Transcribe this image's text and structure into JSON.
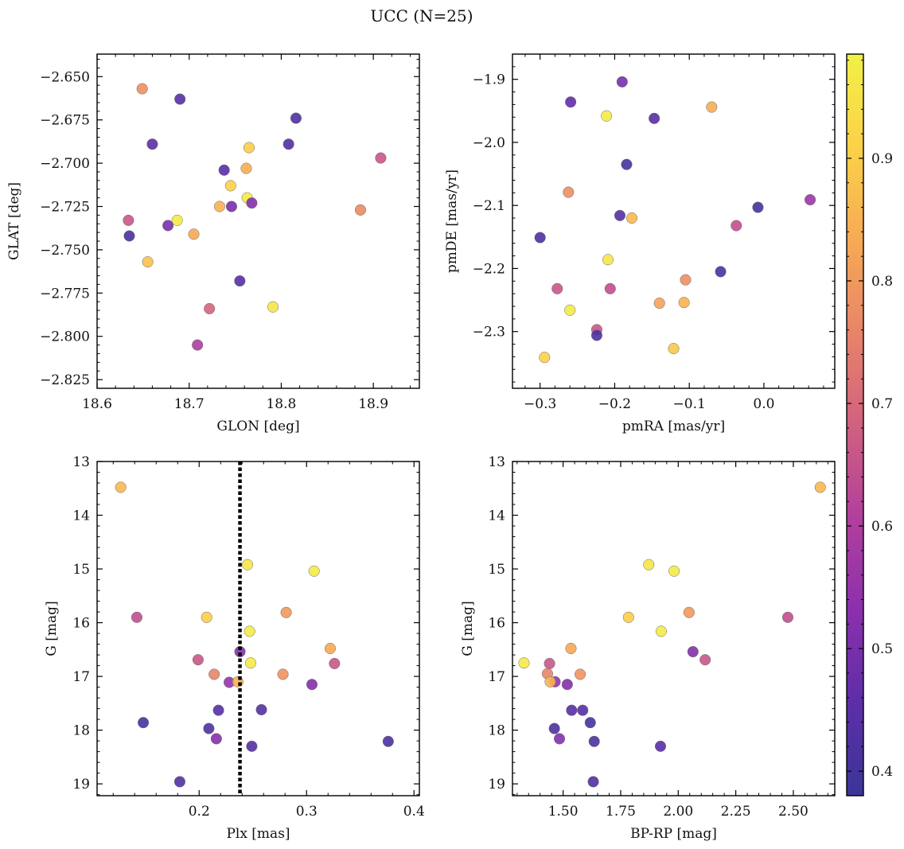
{
  "chart_data": [
    {
      "type": "scatter",
      "title": "UCC (N=25)",
      "xlabel": "GLON [deg]",
      "ylabel": "GLAT [deg]",
      "xlim": [
        18.6,
        18.95
      ],
      "ylim": [
        -2.83,
        -2.637
      ],
      "x_ticks": [
        {
          "value": 18.6,
          "label": "18.6"
        },
        {
          "value": 18.7,
          "label": "18.7"
        },
        {
          "value": 18.8,
          "label": "18.8"
        },
        {
          "value": 18.9,
          "label": "18.9"
        }
      ],
      "y_ticks": [
        {
          "value": -2.65,
          "label": "−2.650"
        },
        {
          "value": -2.675,
          "label": "−2.675"
        },
        {
          "value": -2.7,
          "label": "−2.700"
        },
        {
          "value": -2.725,
          "label": "−2.725"
        },
        {
          "value": -2.75,
          "label": "−2.750"
        },
        {
          "value": -2.775,
          "label": "−2.775"
        },
        {
          "value": -2.8,
          "label": "−2.800"
        },
        {
          "value": -2.825,
          "label": "−2.825"
        }
      ],
      "points": [
        {
          "x": 18.649,
          "y": -2.657,
          "c": 0.78
        },
        {
          "x": 18.69,
          "y": -2.663,
          "c": 0.44
        },
        {
          "x": 18.66,
          "y": -2.689,
          "c": 0.45
        },
        {
          "x": 18.816,
          "y": -2.674,
          "c": 0.42
        },
        {
          "x": 18.808,
          "y": -2.689,
          "c": 0.43
        },
        {
          "x": 18.765,
          "y": -2.691,
          "c": 0.9
        },
        {
          "x": 18.908,
          "y": -2.697,
          "c": 0.66
        },
        {
          "x": 18.738,
          "y": -2.704,
          "c": 0.44
        },
        {
          "x": 18.762,
          "y": -2.703,
          "c": 0.84
        },
        {
          "x": 18.745,
          "y": -2.713,
          "c": 0.91
        },
        {
          "x": 18.763,
          "y": -2.72,
          "c": 0.97
        },
        {
          "x": 18.768,
          "y": -2.723,
          "c": 0.52
        },
        {
          "x": 18.733,
          "y": -2.725,
          "c": 0.85
        },
        {
          "x": 18.746,
          "y": -2.725,
          "c": 0.5
        },
        {
          "x": 18.886,
          "y": -2.727,
          "c": 0.77
        },
        {
          "x": 18.634,
          "y": -2.733,
          "c": 0.66
        },
        {
          "x": 18.687,
          "y": -2.733,
          "c": 0.97
        },
        {
          "x": 18.677,
          "y": -2.736,
          "c": 0.5
        },
        {
          "x": 18.635,
          "y": -2.742,
          "c": 0.41
        },
        {
          "x": 18.705,
          "y": -2.741,
          "c": 0.83
        },
        {
          "x": 18.655,
          "y": -2.757,
          "c": 0.88
        },
        {
          "x": 18.755,
          "y": -2.768,
          "c": 0.44
        },
        {
          "x": 18.722,
          "y": -2.784,
          "c": 0.69
        },
        {
          "x": 18.791,
          "y": -2.783,
          "c": 0.96
        },
        {
          "x": 18.709,
          "y": -2.805,
          "c": 0.6
        }
      ]
    },
    {
      "type": "scatter",
      "xlabel": "pmRA [mas/yr]",
      "ylabel": "pmDE [mas/yr]",
      "xlim": [
        -0.337,
        0.095
      ],
      "ylim": [
        -2.39,
        -1.86
      ],
      "x_ticks": [
        {
          "value": -0.3,
          "label": "−0.3"
        },
        {
          "value": -0.2,
          "label": "−0.2"
        },
        {
          "value": -0.1,
          "label": "−0.1"
        },
        {
          "value": 0.0,
          "label": "0.0"
        }
      ],
      "y_ticks": [
        {
          "value": -1.9,
          "label": "−1.9"
        },
        {
          "value": -2.0,
          "label": "−2.0"
        },
        {
          "value": -2.1,
          "label": "−2.1"
        },
        {
          "value": -2.2,
          "label": "−2.2"
        },
        {
          "value": -2.3,
          "label": "−2.3"
        }
      ],
      "points": [
        {
          "x": -0.19,
          "y": -1.904,
          "c": 0.5
        },
        {
          "x": -0.259,
          "y": -1.936,
          "c": 0.46
        },
        {
          "x": -0.07,
          "y": -1.944,
          "c": 0.84
        },
        {
          "x": -0.211,
          "y": -1.958,
          "c": 0.97
        },
        {
          "x": -0.147,
          "y": -1.962,
          "c": 0.44
        },
        {
          "x": -0.184,
          "y": -2.035,
          "c": 0.41
        },
        {
          "x": -0.262,
          "y": -2.079,
          "c": 0.78
        },
        {
          "x": 0.062,
          "y": -2.091,
          "c": 0.56
        },
        {
          "x": -0.008,
          "y": -2.103,
          "c": 0.4
        },
        {
          "x": -0.193,
          "y": -2.116,
          "c": 0.44
        },
        {
          "x": -0.177,
          "y": -2.12,
          "c": 0.86
        },
        {
          "x": -0.037,
          "y": -2.132,
          "c": 0.64
        },
        {
          "x": -0.3,
          "y": -2.151,
          "c": 0.42
        },
        {
          "x": -0.209,
          "y": -2.186,
          "c": 0.96
        },
        {
          "x": -0.058,
          "y": -2.205,
          "c": 0.42
        },
        {
          "x": -0.105,
          "y": -2.218,
          "c": 0.78
        },
        {
          "x": -0.277,
          "y": -2.232,
          "c": 0.66
        },
        {
          "x": -0.206,
          "y": -2.232,
          "c": 0.64
        },
        {
          "x": -0.14,
          "y": -2.255,
          "c": 0.82
        },
        {
          "x": -0.107,
          "y": -2.254,
          "c": 0.85
        },
        {
          "x": -0.26,
          "y": -2.266,
          "c": 0.97
        },
        {
          "x": -0.224,
          "y": -2.297,
          "c": 0.66
        },
        {
          "x": -0.224,
          "y": -2.306,
          "c": 0.42
        },
        {
          "x": -0.121,
          "y": -2.327,
          "c": 0.89
        },
        {
          "x": -0.294,
          "y": -2.341,
          "c": 0.91
        }
      ]
    },
    {
      "type": "scatter",
      "xlabel": "Plx [mas]",
      "ylabel": "G [mag]",
      "xlim": [
        0.105,
        0.405
      ],
      "ylim": [
        19.22,
        13.0
      ],
      "y_inverted": true,
      "vline": 0.238,
      "x_ticks": [
        {
          "value": 0.2,
          "label": "0.2"
        },
        {
          "value": 0.3,
          "label": "0.3"
        },
        {
          "value": 0.4,
          "label": "0.4"
        }
      ],
      "y_ticks": [
        {
          "value": 13,
          "label": "13"
        },
        {
          "value": 14,
          "label": "14"
        },
        {
          "value": 15,
          "label": "15"
        },
        {
          "value": 16,
          "label": "16"
        },
        {
          "value": 17,
          "label": "17"
        },
        {
          "value": 18,
          "label": "18"
        },
        {
          "value": 19,
          "label": "19"
        }
      ],
      "points": [
        {
          "x": 0.127,
          "y": 13.48,
          "c": 0.86
        },
        {
          "x": 0.245,
          "y": 14.92,
          "c": 0.96
        },
        {
          "x": 0.307,
          "y": 15.04,
          "c": 0.97
        },
        {
          "x": 0.142,
          "y": 15.9,
          "c": 0.64
        },
        {
          "x": 0.207,
          "y": 15.9,
          "c": 0.9
        },
        {
          "x": 0.281,
          "y": 15.81,
          "c": 0.8
        },
        {
          "x": 0.247,
          "y": 16.16,
          "c": 0.97
        },
        {
          "x": 0.322,
          "y": 16.48,
          "c": 0.83
        },
        {
          "x": 0.238,
          "y": 16.54,
          "c": 0.52
        },
        {
          "x": 0.199,
          "y": 16.69,
          "c": 0.66
        },
        {
          "x": 0.248,
          "y": 16.75,
          "c": 0.97
        },
        {
          "x": 0.326,
          "y": 16.76,
          "c": 0.66
        },
        {
          "x": 0.214,
          "y": 16.96,
          "c": 0.76
        },
        {
          "x": 0.278,
          "y": 16.96,
          "c": 0.79
        },
        {
          "x": 0.228,
          "y": 17.11,
          "c": 0.55
        },
        {
          "x": 0.236,
          "y": 17.1,
          "c": 0.85
        },
        {
          "x": 0.305,
          "y": 17.15,
          "c": 0.52
        },
        {
          "x": 0.218,
          "y": 17.63,
          "c": 0.44
        },
        {
          "x": 0.258,
          "y": 17.62,
          "c": 0.44
        },
        {
          "x": 0.148,
          "y": 17.86,
          "c": 0.41
        },
        {
          "x": 0.209,
          "y": 17.97,
          "c": 0.42
        },
        {
          "x": 0.216,
          "y": 18.16,
          "c": 0.52
        },
        {
          "x": 0.249,
          "y": 18.3,
          "c": 0.44
        },
        {
          "x": 0.376,
          "y": 18.21,
          "c": 0.42
        },
        {
          "x": 0.182,
          "y": 18.96,
          "c": 0.43
        }
      ]
    },
    {
      "type": "scatter",
      "xlabel": "BP-RP [mag]",
      "ylabel": "G [mag]",
      "xlim": [
        1.28,
        2.68
      ],
      "ylim": [
        19.22,
        13.0
      ],
      "y_inverted": true,
      "x_ticks": [
        {
          "value": 1.5,
          "label": "1.50"
        },
        {
          "value": 1.75,
          "label": "1.75"
        },
        {
          "value": 2.0,
          "label": "2.00"
        },
        {
          "value": 2.25,
          "label": "2.25"
        },
        {
          "value": 2.5,
          "label": "2.50"
        }
      ],
      "y_ticks": [
        {
          "value": 13,
          "label": "13"
        },
        {
          "value": 14,
          "label": "14"
        },
        {
          "value": 15,
          "label": "15"
        },
        {
          "value": 16,
          "label": "16"
        },
        {
          "value": 17,
          "label": "17"
        },
        {
          "value": 18,
          "label": "18"
        },
        {
          "value": 19,
          "label": "19"
        }
      ],
      "points": [
        {
          "x": 2.617,
          "y": 13.48,
          "c": 0.86
        },
        {
          "x": 1.872,
          "y": 14.92,
          "c": 0.96
        },
        {
          "x": 1.982,
          "y": 15.04,
          "c": 0.97
        },
        {
          "x": 2.476,
          "y": 15.9,
          "c": 0.64
        },
        {
          "x": 1.784,
          "y": 15.9,
          "c": 0.9
        },
        {
          "x": 2.047,
          "y": 15.81,
          "c": 0.8
        },
        {
          "x": 1.926,
          "y": 16.16,
          "c": 0.97
        },
        {
          "x": 1.534,
          "y": 16.48,
          "c": 0.83
        },
        {
          "x": 2.064,
          "y": 16.54,
          "c": 0.52
        },
        {
          "x": 2.117,
          "y": 16.69,
          "c": 0.66
        },
        {
          "x": 1.33,
          "y": 16.75,
          "c": 0.97
        },
        {
          "x": 1.441,
          "y": 16.76,
          "c": 0.66
        },
        {
          "x": 1.432,
          "y": 16.95,
          "c": 0.76
        },
        {
          "x": 1.574,
          "y": 16.96,
          "c": 0.79
        },
        {
          "x": 1.465,
          "y": 17.1,
          "c": 0.55
        },
        {
          "x": 1.444,
          "y": 17.1,
          "c": 0.85
        },
        {
          "x": 1.518,
          "y": 17.15,
          "c": 0.52
        },
        {
          "x": 1.537,
          "y": 17.63,
          "c": 0.44
        },
        {
          "x": 1.585,
          "y": 17.63,
          "c": 0.44
        },
        {
          "x": 1.618,
          "y": 17.86,
          "c": 0.41
        },
        {
          "x": 1.462,
          "y": 17.97,
          "c": 0.42
        },
        {
          "x": 1.484,
          "y": 18.16,
          "c": 0.52
        },
        {
          "x": 1.923,
          "y": 18.3,
          "c": 0.44
        },
        {
          "x": 1.635,
          "y": 18.21,
          "c": 0.42
        },
        {
          "x": 1.631,
          "y": 18.96,
          "c": 0.43
        }
      ]
    }
  ],
  "colorbar": {
    "colormap": "plasma",
    "range": [
      0.38,
      0.985
    ],
    "ticks": [
      {
        "value": 0.4,
        "label": "0.4"
      },
      {
        "value": 0.5,
        "label": "0.5"
      },
      {
        "value": 0.6,
        "label": "0.6"
      },
      {
        "value": 0.7,
        "label": "0.7"
      },
      {
        "value": 0.8,
        "label": "0.8"
      },
      {
        "value": 0.9,
        "label": "0.9"
      }
    ]
  },
  "colors": {
    "vline": "#000000",
    "marker_edge": "#6b6b6b",
    "plasma_stops": [
      "#3b3597",
      "#5d2ea8",
      "#8b30ad",
      "#b23f9c",
      "#d1617f",
      "#e88469",
      "#f7aa55",
      "#fbd248",
      "#f2f048"
    ]
  }
}
